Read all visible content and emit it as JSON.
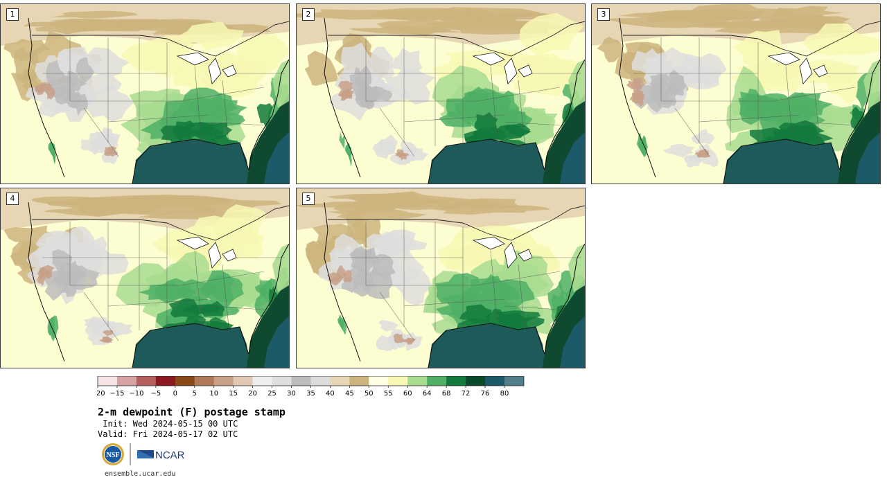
{
  "panels": [
    {
      "label": "1"
    },
    {
      "label": "2"
    },
    {
      "label": "3"
    },
    {
      "label": "4"
    },
    {
      "label": "5"
    }
  ],
  "colorbar": {
    "ticks": [
      "−20",
      "−15",
      "−10",
      "−5",
      "0",
      "5",
      "10",
      "15",
      "20",
      "25",
      "30",
      "35",
      "40",
      "45",
      "50",
      "55",
      "60",
      "64",
      "68",
      "72",
      "76",
      "80"
    ],
    "colors": [
      "#f4e4e4",
      "#d6a2a2",
      "#b55f5f",
      "#8c1820",
      "#8a4a18",
      "#b07a5a",
      "#c8a088",
      "#e0c8b4",
      "#eeeeee",
      "#dedede",
      "#bcbcbc",
      "#dcdcdc",
      "#e6d6b4",
      "#ccb47e",
      "#ffffe6",
      "#f8f8b4",
      "#a8dc90",
      "#4fb065",
      "#127a3c",
      "#0a4a2a",
      "#1c5a6a",
      "#52808a"
    ]
  },
  "title": "2-m dewpoint (F) postage stamp",
  "init_text": " Init: Wed 2024-05-15 00 UTC",
  "valid_text": "Valid: Fri 2024-05-17 02 UTC",
  "logos": {
    "nsf": "NSF",
    "ncar": "NCAR"
  },
  "site": "ensemble.ucar.edu"
}
